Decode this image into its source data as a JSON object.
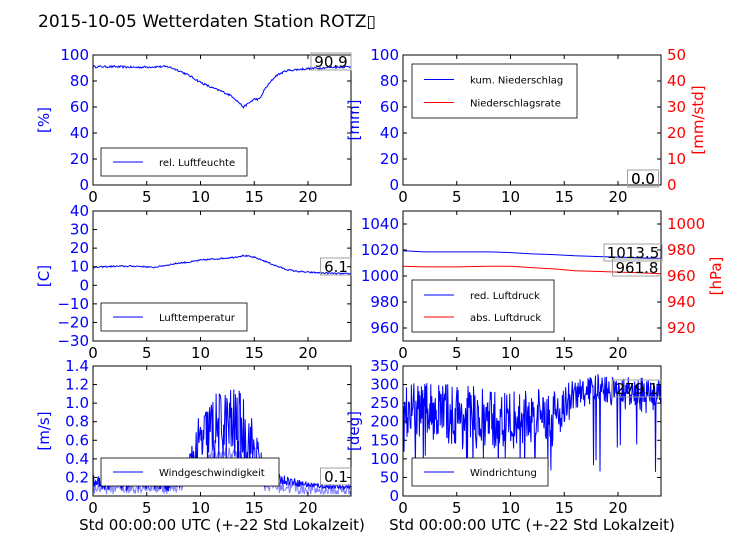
{
  "title": "2015-10-05 Wetterdaten Station ROTZ▯",
  "colors": {
    "blue": "#0000ff",
    "red": "#ff0000",
    "lightblue": "#8080ff",
    "black": "#000000"
  },
  "chart_data": [
    {
      "id": "humidity",
      "type": "line",
      "xlim": [
        0,
        24
      ],
      "ylim": [
        0,
        100
      ],
      "xticks": [
        "0",
        "5",
        "10",
        "15",
        "20"
      ],
      "yticks": [
        "0",
        "20",
        "40",
        "60",
        "80",
        "100"
      ],
      "ylabel": "[%]",
      "annotation": "90.9",
      "legend": [
        "rel. Luftfeuchte"
      ],
      "legend_loc": "lower-left",
      "series": [
        {
          "name": "rel. Luftfeuchte",
          "color": "#0000ff",
          "noise": 0.8,
          "x": [
            0,
            2,
            4,
            6,
            7,
            8,
            9,
            10,
            11,
            12,
            13,
            13.5,
            14,
            14.5,
            15,
            15.5,
            16,
            17,
            18,
            20,
            22,
            24
          ],
          "y": [
            91,
            91,
            90.5,
            91,
            91,
            88,
            84,
            79,
            75,
            72,
            68,
            64,
            60,
            63,
            66,
            66,
            74,
            84,
            88,
            89.5,
            90.5,
            91
          ]
        }
      ]
    },
    {
      "id": "precipitation",
      "type": "line",
      "xlim": [
        0,
        24
      ],
      "ylim": [
        0,
        100
      ],
      "ylim_right": [
        0,
        50
      ],
      "xticks": [
        "0",
        "5",
        "10",
        "15",
        "20"
      ],
      "yticks": [
        "0",
        "20",
        "40",
        "60",
        "80",
        "100"
      ],
      "yticks_right": [
        "0",
        "10",
        "20",
        "30",
        "40",
        "50"
      ],
      "ylabel": "[mm]",
      "ylabel_right": "[mm/std]",
      "annotations": [
        "0.0",
        "0.0"
      ],
      "legend": [
        "kum. Niederschlag",
        "Niederschlagsrate"
      ],
      "legend_loc": "upper-left",
      "series": [
        {
          "name": "kum. Niederschlag",
          "color": "#0000ff",
          "x": [
            0,
            24
          ],
          "y": [
            0,
            0
          ]
        },
        {
          "name": "Niederschlagsrate",
          "color": "#ff0000",
          "x": [
            0,
            24
          ],
          "y": [
            0,
            0
          ]
        }
      ]
    },
    {
      "id": "temperature",
      "type": "line",
      "xlim": [
        0,
        24
      ],
      "ylim": [
        -30,
        40
      ],
      "xticks": [
        "0",
        "5",
        "10",
        "15",
        "20"
      ],
      "yticks": [
        "−30",
        "−20",
        "−10",
        "0",
        "10",
        "20",
        "30",
        "40"
      ],
      "ylabel": "[C]",
      "annotation": "6.1",
      "legend": [
        "Lufttemperatur"
      ],
      "legend_loc": "lower-left",
      "series": [
        {
          "name": "Lufttemperatur",
          "color": "#0000ff",
          "noise": 0.4,
          "x": [
            0,
            1,
            2,
            4,
            5,
            5.5,
            6,
            8,
            9,
            10,
            11,
            12,
            13,
            13.5,
            14,
            15,
            16,
            17,
            18,
            19,
            20,
            22,
            24
          ],
          "y": [
            9.5,
            10,
            10.2,
            10.3,
            10,
            9.5,
            10,
            12,
            12.5,
            13.5,
            14,
            14.5,
            15,
            15.5,
            16,
            15,
            13,
            10.5,
            8.5,
            7.5,
            7,
            6.5,
            6.1
          ]
        }
      ]
    },
    {
      "id": "pressure",
      "type": "line",
      "xlim": [
        0,
        24
      ],
      "ylim": [
        950,
        1050
      ],
      "ylim_right": [
        910,
        1010
      ],
      "xticks": [
        "0",
        "5",
        "10",
        "15",
        "20"
      ],
      "yticks": [
        "960",
        "980",
        "1000",
        "1020",
        "1040"
      ],
      "yticks_right": [
        "920",
        "940",
        "960",
        "980",
        "1000"
      ],
      "ylabel": "[hPa]",
      "annotations": [
        "1013.5",
        "961.8"
      ],
      "legend": [
        "red. Luftdruck",
        "abs. Luftdruck"
      ],
      "legend_loc": "lower-left",
      "series": [
        {
          "name": "red. Luftdruck",
          "color": "#0000ff",
          "x": [
            0,
            2,
            5,
            8,
            10,
            12,
            14,
            16,
            18,
            20,
            22,
            24
          ],
          "y": [
            1019.5,
            1018.5,
            1018.5,
            1018.5,
            1018,
            1017,
            1016.5,
            1015.5,
            1015,
            1014.5,
            1014,
            1013.5
          ]
        },
        {
          "name": "abs. Luftdruck",
          "color": "#ff0000",
          "x": [
            0,
            2,
            5,
            8,
            10,
            12,
            14,
            16,
            18,
            20,
            22,
            24
          ],
          "y": [
            967.5,
            967,
            967,
            967.5,
            967.5,
            966.5,
            965.5,
            964,
            963.5,
            963,
            962.5,
            961.8
          ]
        }
      ]
    },
    {
      "id": "wind_speed",
      "type": "line",
      "xlim": [
        0,
        24
      ],
      "ylim": [
        0,
        1.4
      ],
      "xticks": [
        "0",
        "5",
        "10",
        "15",
        "20"
      ],
      "yticks": [
        "0.0",
        "0.2",
        "0.4",
        "0.6",
        "0.8",
        "1.0",
        "1.2",
        "1.4"
      ],
      "ylabel": "[m/s]",
      "xlabel": "Std 00:00:00 UTC (+-22 Std Lokalzeit)",
      "annotation": "0.1",
      "legend": [
        "Windgeschwindigkeit"
      ],
      "legend_loc": "lower-left",
      "series": [
        {
          "name": "Windgeschwindigkeit",
          "color": "#0000ff",
          "x": [
            0,
            3,
            5,
            7,
            8,
            9,
            9.5,
            10,
            11,
            12,
            13,
            14,
            15,
            16,
            17,
            18,
            20,
            22,
            24
          ],
          "y": [
            0.15,
            0.15,
            0.18,
            0.15,
            0.2,
            0.3,
            0.45,
            0.55,
            0.7,
            0.75,
            0.75,
            0.7,
            0.5,
            0.2,
            0.18,
            0.17,
            0.12,
            0.1,
            0.1
          ],
          "spread": [
            0.08,
            0.1,
            0.1,
            0.1,
            0.12,
            0.2,
            0.3,
            0.35,
            0.4,
            0.4,
            0.45,
            0.4,
            0.3,
            0.12,
            0.05,
            0.05,
            0.03,
            0.02,
            0.02
          ]
        }
      ]
    },
    {
      "id": "wind_direction",
      "type": "line",
      "xlim": [
        0,
        24
      ],
      "ylim": [
        0,
        350
      ],
      "xticks": [
        "0",
        "5",
        "10",
        "15",
        "20"
      ],
      "yticks": [
        "0",
        "50",
        "100",
        "150",
        "200",
        "250",
        "300",
        "350"
      ],
      "ylabel": "[deg]",
      "xlabel": "Std 00:00:00 UTC (+-22 Std Lokalzeit)",
      "annotation": "279.1",
      "legend": [
        "Windrichtung"
      ],
      "legend_loc": "lower-left",
      "series": [
        {
          "name": "Windrichtung",
          "color": "#0000ff",
          "x": [
            0,
            3,
            6,
            9,
            12,
            14,
            15,
            16,
            17,
            18,
            20,
            22,
            24
          ],
          "y": [
            230,
            230,
            210,
            200,
            210,
            220,
            240,
            270,
            280,
            290,
            280,
            270,
            270
          ],
          "spread": [
            70,
            80,
            90,
            80,
            80,
            70,
            60,
            50,
            40,
            40,
            40,
            50,
            40
          ]
        }
      ]
    }
  ]
}
